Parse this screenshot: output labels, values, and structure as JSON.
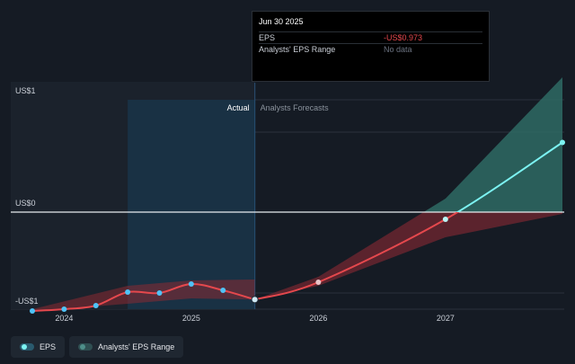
{
  "tooltip": {
    "date": "Jun 30 2025",
    "rows": [
      {
        "label": "EPS",
        "value": "-US$0.973"
      },
      {
        "label": "Analysts' EPS Range",
        "value": "No data"
      }
    ]
  },
  "zones": {
    "actual": "Actual",
    "forecast": "Analysts Forecasts"
  },
  "legend": {
    "eps": "EPS",
    "range": "Analysts' EPS Range"
  },
  "colors": {
    "background": "#151b24",
    "eps_line": "#e5484d",
    "eps_dot": "#4fc3f7",
    "forecast_line": "#7cf3f2",
    "range_neg": "#8b2a33",
    "range_pos": "#2f6f68",
    "highlight": "#1a3347",
    "tooltip_negative": "#e5484d"
  },
  "chart_data": {
    "type": "line",
    "y_ticks": [
      {
        "value": 1,
        "label": "US$1"
      },
      {
        "value": 0,
        "label": "US$0"
      },
      {
        "value": -1,
        "label": "-US$1"
      }
    ],
    "x_ticks": [
      {
        "value": 2024,
        "label": "2024"
      },
      {
        "value": 2025,
        "label": "2025"
      },
      {
        "value": 2026,
        "label": "2026"
      },
      {
        "value": 2027,
        "label": "2027"
      }
    ],
    "xlim": [
      2023.75,
      2027.92
    ],
    "ylim": [
      -1.1,
      1.2
    ],
    "actual_end": 2025.5,
    "highlight_range": [
      2024.5,
      2025.5
    ],
    "series": [
      {
        "name": "EPS",
        "x": [
          2023.75,
          2024.0,
          2024.25,
          2024.5,
          2024.75,
          2025.0,
          2025.25,
          2025.5
        ],
        "y": [
          -1.1,
          -1.08,
          -1.04,
          -0.89,
          -0.9,
          -0.8,
          -0.87,
          -0.973
        ]
      },
      {
        "name": "EPS forecast",
        "x": [
          2025.5,
          2026.0,
          2027.0,
          2027.92
        ],
        "y": [
          -0.973,
          -0.78,
          -0.08,
          0.62
        ]
      }
    ],
    "range_bands": [
      {
        "x": [
          2023.75,
          2024.5,
          2025.0,
          2025.5
        ],
        "low": [
          -1.1,
          -1.02,
          -0.96,
          -0.973
        ],
        "high": [
          -1.08,
          -0.82,
          -0.76,
          -0.75
        ]
      },
      {
        "x": [
          2025.5,
          2026.0,
          2027.0,
          2027.92
        ],
        "low": [
          -0.973,
          -0.82,
          -0.28,
          -0.02
        ],
        "high": [
          -0.973,
          -0.72,
          0.12,
          1.2
        ]
      }
    ]
  }
}
